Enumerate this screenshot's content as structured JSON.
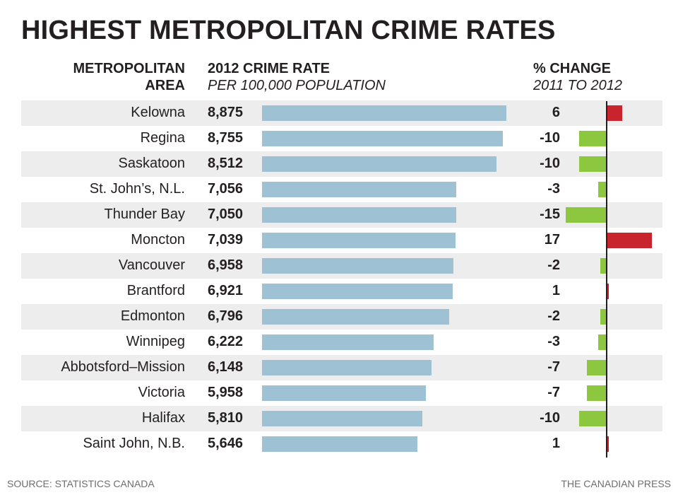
{
  "title": "HIGHEST METROPOLITAN CRIME RATES",
  "headers": {
    "area_line1": "METROPOLITAN",
    "area_line2": "AREA",
    "rate_line1": "2012 CRIME RATE",
    "rate_line2": "PER 100,000 POPULATION",
    "change_line1": "% CHANGE",
    "change_line2": "2011 TO 2012"
  },
  "footer": {
    "source": "SOURCE: STATISTICS CANADA",
    "credit": "THE CANADIAN PRESS"
  },
  "colors": {
    "rate_bar": "#9ec1d3",
    "increase": "#c8242e",
    "decrease": "#8dc63f",
    "band": "#ededed"
  },
  "chart_data": {
    "type": "bar",
    "title": "HIGHEST METROPOLITAN CRIME RATES",
    "categories": [
      "Kelowna",
      "Regina",
      "Saskatoon",
      "St. John’s, N.L.",
      "Thunder Bay",
      "Moncton",
      "Vancouver",
      "Brantford",
      "Edmonton",
      "Winnipeg",
      "Abbotsford–Mission",
      "Victoria",
      "Halifax",
      "Saint John, N.B."
    ],
    "series": [
      {
        "name": "2012 CRIME RATE",
        "values": [
          8875,
          8755,
          8512,
          7056,
          7050,
          7039,
          6958,
          6921,
          6796,
          6222,
          6148,
          5958,
          5810,
          5646
        ],
        "labels": [
          "8,875",
          "8,755",
          "8,512",
          "7,056",
          "7,050",
          "7,039",
          "6,958",
          "6,921",
          "6,796",
          "6,222",
          "6,148",
          "5,958",
          "5,810",
          "5,646"
        ]
      },
      {
        "name": "% CHANGE",
        "values": [
          6,
          -10,
          -10,
          -3,
          -15,
          17,
          -2,
          1,
          -2,
          -3,
          -7,
          -7,
          -10,
          1
        ],
        "labels": [
          "6",
          "-10",
          "-10",
          "-3",
          "-15",
          "17",
          "-2",
          "1",
          "-2",
          "-3",
          "-7",
          "-7",
          "-10",
          "1"
        ]
      }
    ],
    "banded_rows": true
  }
}
